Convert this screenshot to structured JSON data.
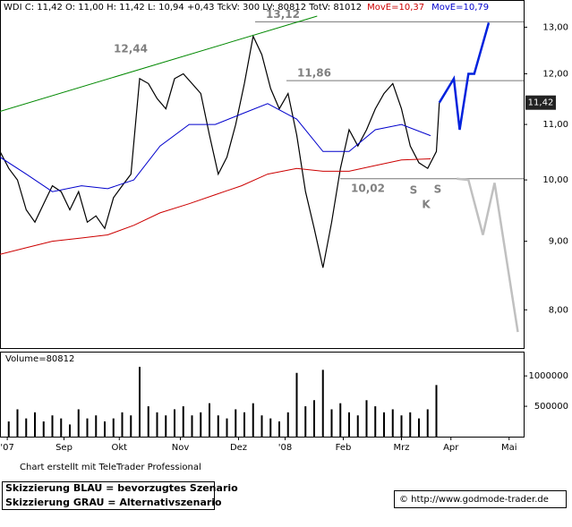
{
  "chart_data": [
    {
      "type": "line",
      "title": "WDI C: 11,42 O: 11,00 H: 11,42 L: 10,94 +0,43 TckV: 300 LV: 80812 TotV: 81012",
      "log": true,
      "xlim": [
        0,
        180
      ],
      "ylim": [
        7.48,
        13.25
      ],
      "yticks": [
        {
          "value": 13,
          "label": "13,00"
        },
        {
          "value": 12,
          "label": "12,00"
        },
        {
          "value": 11,
          "label": "11,00"
        },
        {
          "value": 10,
          "label": "10,00"
        },
        {
          "value": 9,
          "label": "9,00"
        },
        {
          "value": 8,
          "label": "8,00"
        }
      ],
      "series": [
        {
          "color": "#000000",
          "x": [
            0,
            3,
            6,
            9,
            12,
            15,
            18,
            21,
            24,
            27,
            30,
            33,
            36,
            39,
            42,
            45,
            48,
            51,
            54,
            57,
            60,
            63,
            66,
            69,
            72,
            75,
            78,
            81,
            84,
            87,
            90,
            93,
            96,
            99,
            102,
            105,
            108,
            111,
            114,
            117,
            120,
            123,
            126,
            129,
            132,
            135,
            138,
            141,
            144,
            147,
            150,
            151
          ],
          "values": [
            10.5,
            10.2,
            10.0,
            9.5,
            9.3,
            9.6,
            9.9,
            9.8,
            9.5,
            9.8,
            9.3,
            9.4,
            9.2,
            9.7,
            9.9,
            10.1,
            11.9,
            11.8,
            11.5,
            11.3,
            11.9,
            12.0,
            11.8,
            11.6,
            10.8,
            10.1,
            10.4,
            11.0,
            11.8,
            12.8,
            12.4,
            11.7,
            11.3,
            11.6,
            10.8,
            9.8,
            9.2,
            8.6,
            9.3,
            10.2,
            10.9,
            10.6,
            10.9,
            11.3,
            11.6,
            11.8,
            11.3,
            10.6,
            10.3,
            10.2,
            10.5,
            11.42
          ]
        },
        {
          "name": "MovE=10,37",
          "color": "#cc0000",
          "x": [
            0,
            9,
            18,
            28,
            37,
            46,
            55,
            65,
            74,
            83,
            92,
            102,
            111,
            120,
            129,
            138,
            148
          ],
          "values": [
            8.8,
            8.9,
            9.0,
            9.05,
            9.1,
            9.25,
            9.45,
            9.6,
            9.75,
            9.9,
            10.1,
            10.2,
            10.15,
            10.15,
            10.25,
            10.35,
            10.37
          ]
        },
        {
          "name": "MovE=10,79",
          "color": "#0000cc",
          "x": [
            0,
            9,
            18,
            28,
            37,
            46,
            55,
            65,
            74,
            83,
            92,
            102,
            111,
            120,
            129,
            138,
            148
          ],
          "values": [
            10.4,
            10.1,
            9.8,
            9.9,
            9.85,
            10.0,
            10.6,
            11.0,
            11.0,
            11.2,
            11.4,
            11.1,
            10.5,
            10.5,
            10.9,
            11.0,
            10.79
          ]
        },
        {
          "color": "#008800",
          "x": [
            0,
            109
          ],
          "values": [
            11.25,
            13.25
          ]
        },
        {
          "name": "Skizzierung BLAU = bevorzugtes Szenario",
          "color": "#0022dd",
          "x": [
            151,
            156,
            158,
            161,
            163,
            168
          ],
          "values": [
            11.42,
            11.9,
            10.9,
            12.0,
            12.0,
            13.1
          ]
        },
        {
          "name": "Skizzierung GRAU = Alternativszenario",
          "color": "#c0c0c0",
          "x": [
            157,
            161,
            166,
            170,
            178
          ],
          "values": [
            10.02,
            10.0,
            9.1,
            9.95,
            7.7
          ]
        }
      ],
      "levels": [
        {
          "value": 13.12,
          "label": "13,12"
        },
        {
          "value": 11.86,
          "label": "11,86"
        },
        {
          "value": 10.02,
          "label": "10,02"
        }
      ],
      "peak_label": {
        "value": 12.44,
        "label": "12,44"
      },
      "pattern_labels": [
        "S",
        "K",
        "S"
      ],
      "last_label": {
        "value": 11.42,
        "label": "11,42"
      }
    },
    {
      "type": "bar",
      "title": "Volume=80812",
      "color": "#000000",
      "xlim": [
        0,
        180
      ],
      "ylim": [
        0,
        1400000
      ],
      "yticks": [
        1000000,
        500000
      ],
      "x": [
        0,
        3,
        6,
        9,
        12,
        15,
        18,
        21,
        24,
        27,
        30,
        33,
        36,
        39,
        42,
        45,
        48,
        51,
        54,
        57,
        60,
        63,
        66,
        69,
        72,
        75,
        78,
        81,
        84,
        87,
        90,
        93,
        96,
        99,
        102,
        105,
        108,
        111,
        114,
        117,
        120,
        123,
        126,
        129,
        132,
        135,
        138,
        141,
        144,
        147,
        150
      ],
      "values": [
        350000,
        250000,
        450000,
        300000,
        400000,
        250000,
        350000,
        300000,
        200000,
        450000,
        300000,
        350000,
        250000,
        300000,
        400000,
        350000,
        1150000,
        500000,
        400000,
        350000,
        450000,
        500000,
        350000,
        400000,
        550000,
        350000,
        300000,
        450000,
        400000,
        550000,
        350000,
        300000,
        250000,
        400000,
        1050000,
        500000,
        600000,
        1100000,
        450000,
        550000,
        400000,
        350000,
        600000,
        500000,
        400000,
        450000,
        350000,
        400000,
        300000,
        450000,
        850000
      ],
      "xticks": [
        {
          "value": 2.5,
          "label": "'07"
        },
        {
          "value": 22,
          "label": "Sep"
        },
        {
          "value": 41,
          "label": "Okt"
        },
        {
          "value": 62,
          "label": "Nov"
        },
        {
          "value": 82,
          "label": "Dez"
        },
        {
          "value": 98,
          "label": "'08"
        },
        {
          "value": 118,
          "label": "Feb"
        },
        {
          "value": 138,
          "label": "Mrz"
        },
        {
          "value": 155,
          "label": "Apr"
        },
        {
          "value": 175,
          "label": "Mai"
        }
      ]
    }
  ],
  "footer": {
    "credit": "Chart erstellt mit TeleTrader Professional",
    "source": "© http://www.godmode-trader.de"
  }
}
